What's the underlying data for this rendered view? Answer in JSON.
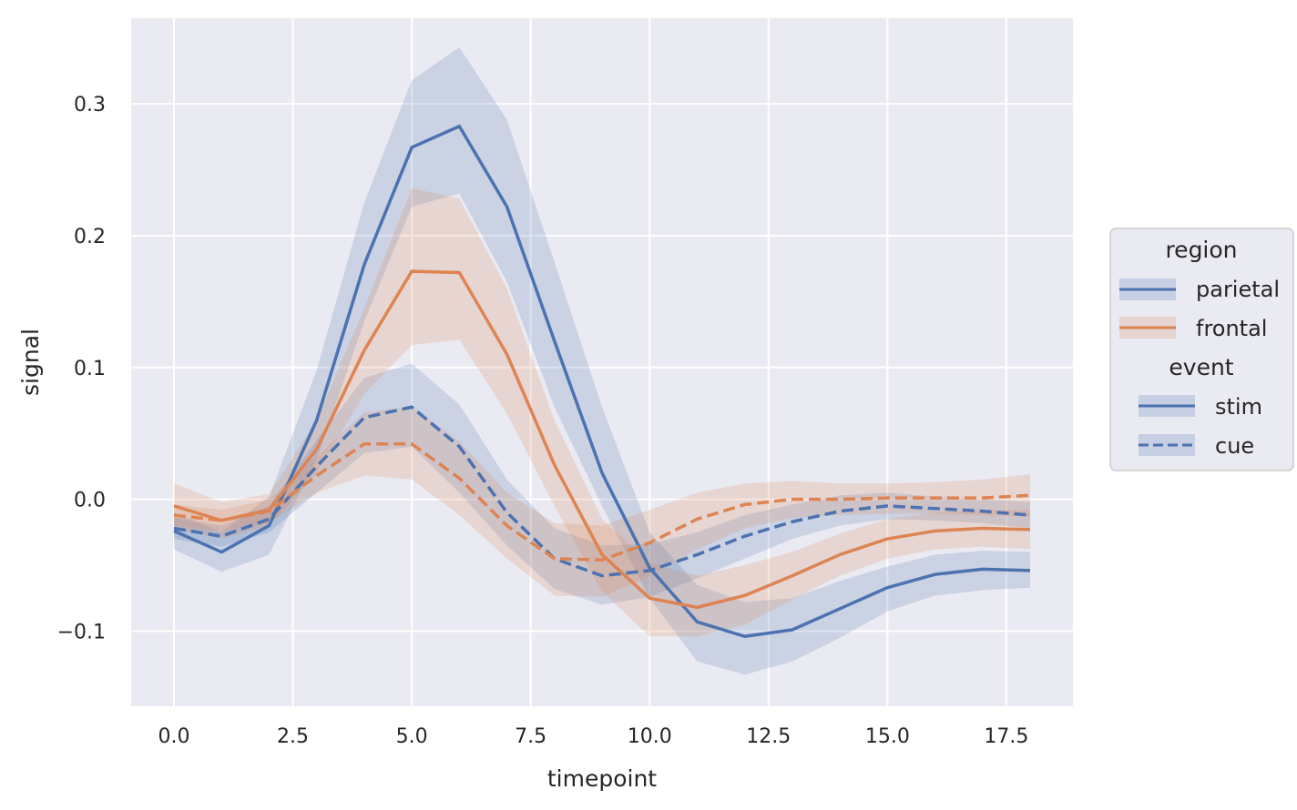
{
  "chart_data": {
    "type": "line",
    "xlabel": "timepoint",
    "ylabel": "signal",
    "xlim": [
      -0.9,
      18.9
    ],
    "ylim": [
      -0.157,
      0.365
    ],
    "xticks": [
      0.0,
      2.5,
      5.0,
      7.5,
      10.0,
      12.5,
      15.0,
      17.5
    ],
    "xtick_labels": [
      "0.0",
      "2.5",
      "5.0",
      "7.5",
      "10.0",
      "12.5",
      "15.0",
      "17.5"
    ],
    "yticks": [
      -0.1,
      0.0,
      0.1,
      0.2,
      0.3
    ],
    "ytick_labels": [
      "−0.1",
      "0.0",
      "0.1",
      "0.2",
      "0.3"
    ],
    "grid": true,
    "legend_position": "right",
    "colors": {
      "parietal": "#4c72b0",
      "frontal": "#dd8452",
      "background": "#eaeaf2",
      "grid": "#ffffff"
    },
    "x": [
      0,
      1,
      2,
      3,
      4,
      5,
      6,
      7,
      8,
      9,
      10,
      11,
      12,
      13,
      14,
      15,
      16,
      17,
      18
    ],
    "series": [
      {
        "region": "parietal",
        "event": "stim",
        "dashed": false,
        "values": [
          -0.024,
          -0.04,
          -0.02,
          0.06,
          0.178,
          0.267,
          0.283,
          0.222,
          0.12,
          0.02,
          -0.052,
          -0.093,
          -0.104,
          -0.099,
          -0.083,
          -0.067,
          -0.057,
          -0.053,
          -0.054
        ],
        "lower": [
          -0.038,
          -0.055,
          -0.042,
          0.03,
          0.135,
          0.222,
          0.232,
          0.165,
          0.07,
          -0.005,
          -0.075,
          -0.123,
          -0.133,
          -0.123,
          -0.105,
          -0.085,
          -0.073,
          -0.069,
          -0.067
        ],
        "upper": [
          -0.01,
          -0.025,
          0.002,
          0.098,
          0.225,
          0.318,
          0.343,
          0.288,
          0.18,
          0.07,
          -0.025,
          -0.065,
          -0.078,
          -0.075,
          -0.062,
          -0.051,
          -0.042,
          -0.039,
          -0.04
        ]
      },
      {
        "region": "parietal",
        "event": "cue",
        "dashed": true,
        "values": [
          -0.022,
          -0.028,
          -0.015,
          0.025,
          0.062,
          0.07,
          0.04,
          -0.01,
          -0.045,
          -0.058,
          -0.054,
          -0.042,
          -0.028,
          -0.017,
          -0.009,
          -0.005,
          -0.007,
          -0.009,
          -0.012
        ],
        "lower": [
          -0.03,
          -0.036,
          -0.025,
          0.005,
          0.035,
          0.04,
          0.005,
          -0.035,
          -0.068,
          -0.08,
          -0.074,
          -0.06,
          -0.045,
          -0.03,
          -0.02,
          -0.015,
          -0.016,
          -0.018,
          -0.022
        ],
        "upper": [
          -0.014,
          -0.02,
          -0.005,
          0.045,
          0.092,
          0.103,
          0.072,
          0.015,
          -0.022,
          -0.035,
          -0.034,
          -0.025,
          -0.012,
          -0.004,
          0.003,
          0.005,
          0.002,
          0.0,
          -0.002
        ]
      },
      {
        "region": "frontal",
        "event": "stim",
        "dashed": false,
        "values": [
          -0.005,
          -0.016,
          -0.008,
          0.038,
          0.113,
          0.173,
          0.172,
          0.11,
          0.026,
          -0.042,
          -0.075,
          -0.082,
          -0.073,
          -0.058,
          -0.042,
          -0.03,
          -0.024,
          -0.022,
          -0.023
        ],
        "lower": [
          -0.022,
          -0.03,
          -0.02,
          0.02,
          0.08,
          0.117,
          0.121,
          0.065,
          -0.005,
          -0.07,
          -0.104,
          -0.104,
          -0.095,
          -0.076,
          -0.058,
          -0.045,
          -0.038,
          -0.036,
          -0.038
        ],
        "upper": [
          0.012,
          -0.002,
          0.004,
          0.06,
          0.145,
          0.236,
          0.228,
          0.16,
          0.06,
          -0.015,
          -0.048,
          -0.058,
          -0.05,
          -0.04,
          -0.026,
          -0.015,
          -0.01,
          -0.008,
          -0.008
        ]
      },
      {
        "region": "frontal",
        "event": "cue",
        "dashed": true,
        "values": [
          -0.012,
          -0.016,
          -0.009,
          0.018,
          0.042,
          0.042,
          0.016,
          -0.02,
          -0.045,
          -0.046,
          -0.033,
          -0.015,
          -0.004,
          0.0,
          0.0,
          0.001,
          0.001,
          0.001,
          0.003
        ],
        "lower": [
          -0.02,
          -0.024,
          -0.018,
          0.005,
          0.018,
          0.015,
          -0.012,
          -0.045,
          -0.073,
          -0.074,
          -0.058,
          -0.038,
          -0.022,
          -0.014,
          -0.012,
          -0.011,
          -0.011,
          -0.012,
          -0.013
        ],
        "upper": [
          -0.004,
          -0.008,
          0.0,
          0.032,
          0.066,
          0.07,
          0.044,
          0.005,
          -0.018,
          -0.02,
          -0.008,
          0.005,
          0.012,
          0.014,
          0.012,
          0.012,
          0.013,
          0.015,
          0.019
        ]
      }
    ],
    "legend": {
      "region_title": "region",
      "region_items": [
        "parietal",
        "frontal"
      ],
      "event_title": "event",
      "event_items": [
        "stim",
        "cue"
      ]
    }
  }
}
